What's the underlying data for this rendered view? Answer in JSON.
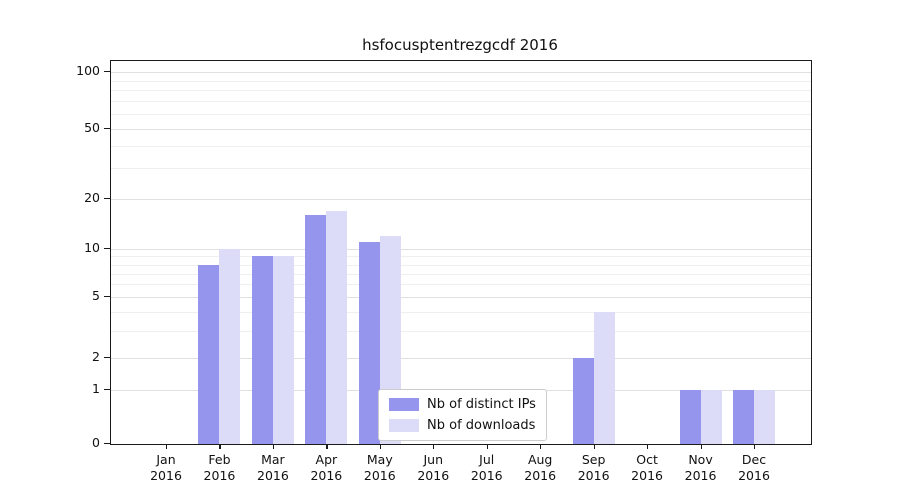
{
  "colors": {
    "ips": "#9595ee",
    "downloads": "#dcdcf9",
    "grid_major": "#e0e0e0",
    "grid_minor": "#efefef",
    "axis": "#1a1a1a"
  },
  "chart_data": {
    "type": "bar",
    "title": "hsfocusptentrezgcdf 2016",
    "categories": [
      "Jan",
      "Feb",
      "Mar",
      "Apr",
      "May",
      "Jun",
      "Jul",
      "Aug",
      "Sep",
      "Oct",
      "Nov",
      "Dec"
    ],
    "year": "2016",
    "series": [
      {
        "name": "Nb of distinct IPs",
        "color_key": "ips",
        "values": [
          0,
          8,
          9,
          16,
          11,
          0,
          0,
          0,
          2,
          0,
          1,
          1
        ]
      },
      {
        "name": "Nb of downloads",
        "color_key": "downloads",
        "values": [
          0,
          10,
          9,
          17,
          12,
          0,
          0,
          0,
          4,
          0,
          1,
          1
        ]
      }
    ],
    "yticks": [
      0,
      1,
      2,
      5,
      10,
      20,
      50,
      100
    ],
    "minor_yticks": [
      3,
      4,
      6,
      7,
      8,
      9,
      30,
      40,
      60,
      70,
      80,
      90
    ],
    "scale": "symlog",
    "ylim": [
      0,
      100
    ],
    "grid": "on",
    "legend_position": "lower center"
  }
}
